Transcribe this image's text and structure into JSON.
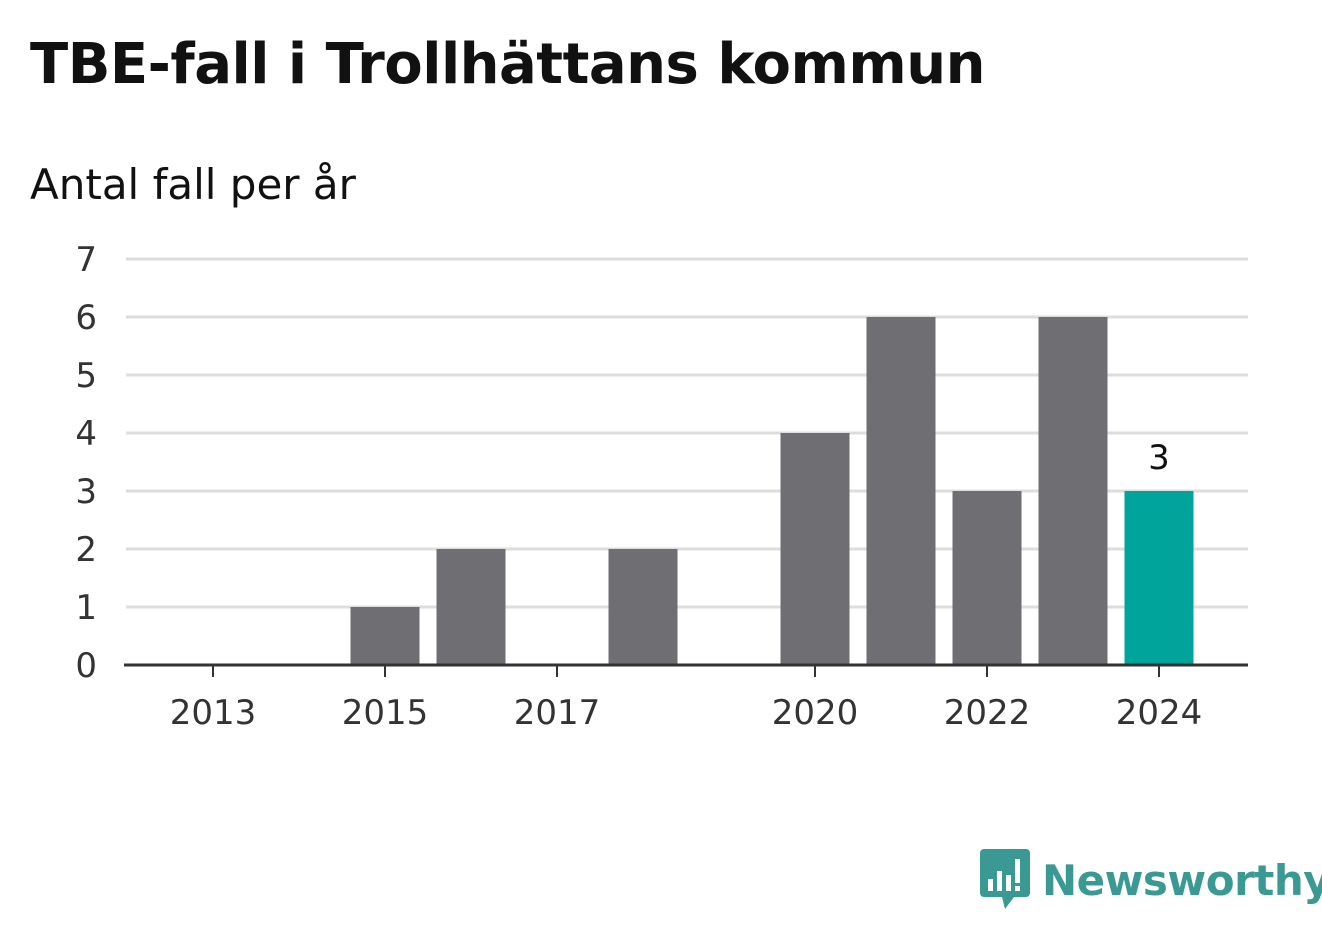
{
  "title": "TBE-fall i Trollhättans kommun",
  "subtitle": "Antal fall per år",
  "brand": {
    "name": "Newsworthy",
    "icon": "bar-chart-speech-bubble-icon",
    "color": "#3a9a93"
  },
  "colors": {
    "bar": "#6f6e73",
    "highlight": "#00a49a",
    "grid": "#dddddd",
    "axis": "#333333"
  },
  "chart_data": {
    "type": "bar",
    "categories": [
      "2013",
      "2014",
      "2015",
      "2016",
      "2017",
      "2018",
      "2019",
      "2020",
      "2021",
      "2022",
      "2023",
      "2024"
    ],
    "values": [
      0,
      0,
      1,
      2,
      0,
      2,
      0,
      4,
      6,
      3,
      6,
      3
    ],
    "x_tick_labels": [
      "2013",
      "2015",
      "2017",
      "2020",
      "2022",
      "2024"
    ],
    "y_ticks": [
      "0",
      "1",
      "2",
      "3",
      "4",
      "5",
      "6",
      "7"
    ],
    "ylim": [
      0,
      7
    ],
    "highlight_category": "2024",
    "data_labels": [
      {
        "category": "2024",
        "text": "3"
      }
    ],
    "grid": true
  }
}
